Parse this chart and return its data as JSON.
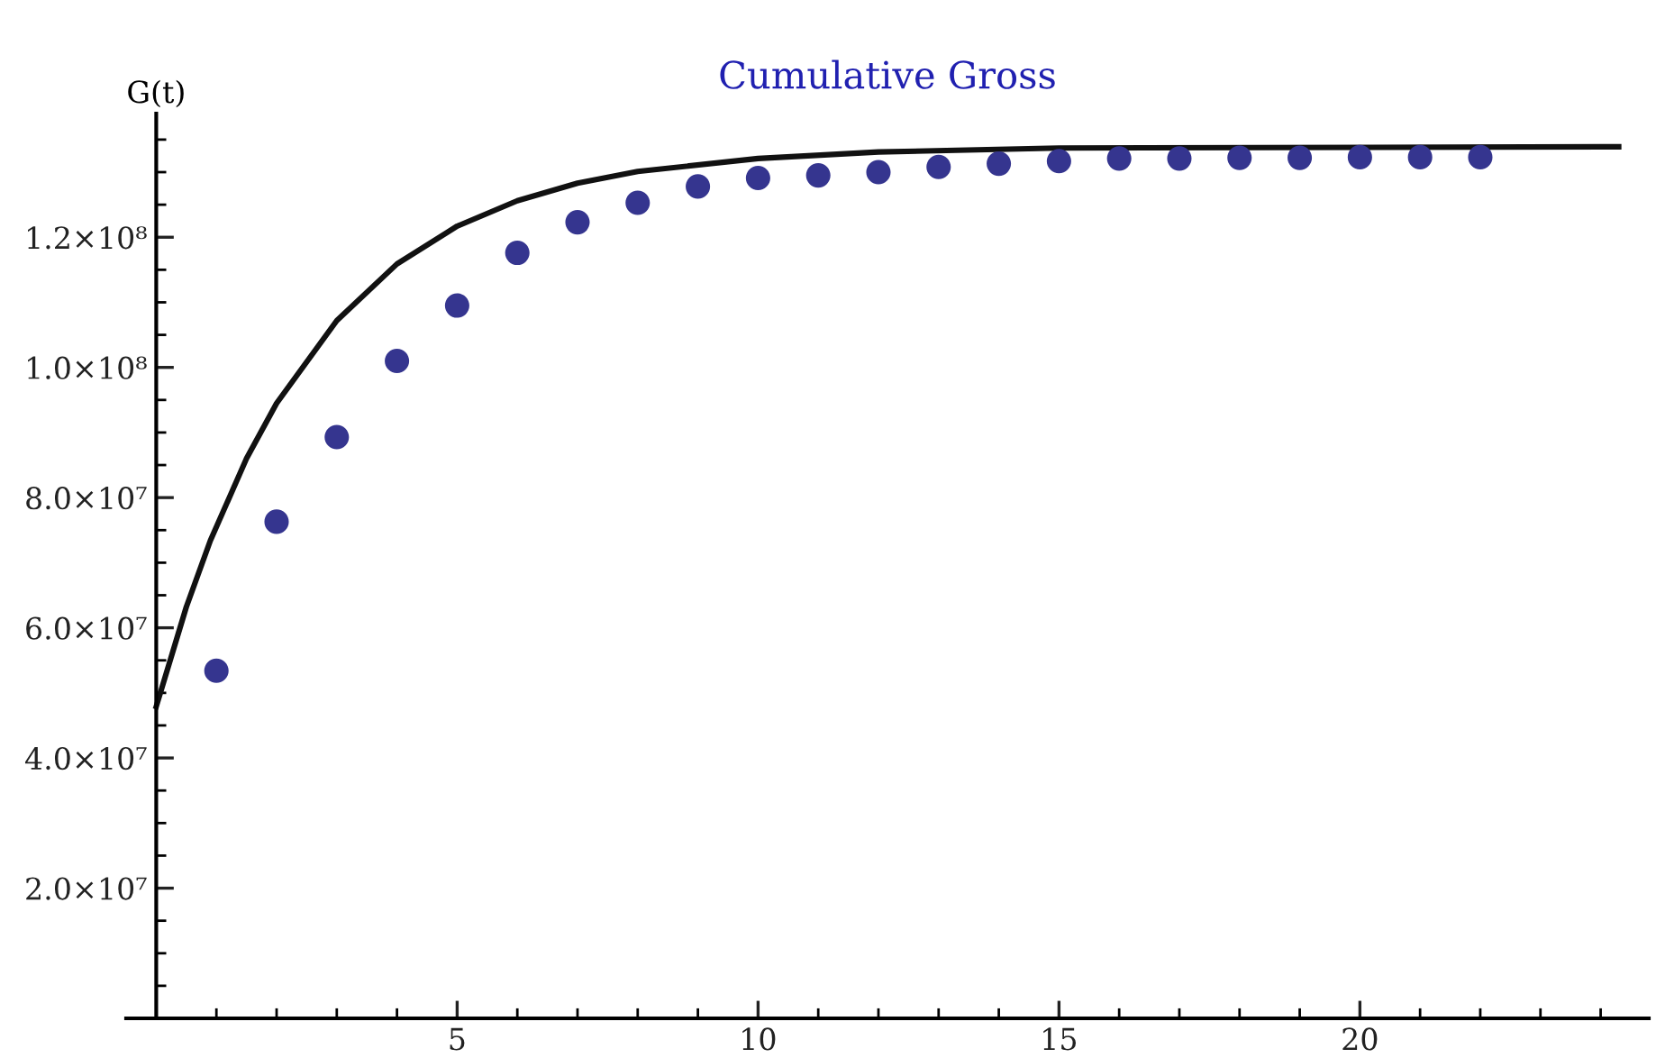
{
  "chart_data": {
    "type": "scatter",
    "title": "Cumulative Gross",
    "ylabel": "G(t)",
    "series": [
      {
        "color": "#35358f",
        "marker": "circle",
        "x": [
          1,
          2,
          3,
          4,
          5,
          6,
          7,
          8,
          9,
          10,
          11,
          12,
          13,
          14,
          15,
          16,
          17,
          18,
          19,
          20,
          21,
          22
        ],
        "values": [
          53400000.0,
          76300000.0,
          89300000.0,
          101000000.0,
          109500000.0,
          117600000.0,
          122300000.0,
          125300000.0,
          127800000.0,
          129100000.0,
          129500000.0,
          130000000.0,
          130800000.0,
          131300000.0,
          131700000.0,
          132100000.0,
          132100000.0,
          132200000.0,
          132200000.0,
          132300000.0,
          132300000.0,
          132300000.0
        ]
      },
      {
        "type": "line",
        "color": "#111111",
        "marker": "none",
        "line_style": "solid",
        "x": [
          0,
          0.5,
          0.9,
          1.5,
          2,
          3,
          4,
          5,
          6,
          7,
          8,
          10,
          12,
          15,
          24.3
        ],
        "values": [
          47900000.0,
          63200000.0,
          73400000.0,
          86000000.0,
          94500000.0,
          107200000.0,
          115900000.0,
          121700000.0,
          125600000.0,
          128300000.0,
          130100000.0,
          132100000.0,
          133100000.0,
          133700000.0,
          133900000.0
        ]
      }
    ],
    "xlim": [
      -0.5,
      24.8
    ],
    "xticks": [
      {
        "value": 1,
        "label": null
      },
      {
        "value": 2,
        "label": null
      },
      {
        "value": 3,
        "label": null
      },
      {
        "value": 4,
        "label": null
      },
      5,
      {
        "value": 6,
        "label": null
      },
      {
        "value": 7,
        "label": null
      },
      {
        "value": 8,
        "label": null
      },
      {
        "value": 9,
        "label": null
      },
      10,
      {
        "value": 11,
        "label": null
      },
      {
        "value": 12,
        "label": null
      },
      {
        "value": 13,
        "label": null
      },
      {
        "value": 14,
        "label": null
      },
      15,
      {
        "value": 16,
        "label": null
      },
      {
        "value": 17,
        "label": null
      },
      {
        "value": 18,
        "label": null
      },
      {
        "value": 19,
        "label": null
      },
      20,
      {
        "value": 21,
        "label": null
      },
      {
        "value": 22,
        "label": null
      },
      {
        "value": 23,
        "label": null
      },
      {
        "value": 24,
        "label": null
      }
    ],
    "ylim": [
      0,
      139000000.0
    ],
    "yticks": [
      {
        "value": 5000000.0,
        "label": null
      },
      {
        "value": 10000000.0,
        "label": null
      },
      {
        "value": 15000000.0,
        "label": null
      },
      {
        "value": 20000000.0,
        "label": "2.0×10⁷"
      },
      {
        "value": 25000000.0,
        "label": null
      },
      {
        "value": 30000000.0,
        "label": null
      },
      {
        "value": 35000000.0,
        "label": null
      },
      {
        "value": 40000000.0,
        "label": "4.0×10⁷"
      },
      {
        "value": 45000000.0,
        "label": null
      },
      {
        "value": 50000000.0,
        "label": null
      },
      {
        "value": 55000000.0,
        "label": null
      },
      {
        "value": 60000000.0,
        "label": "6.0×10⁷"
      },
      {
        "value": 65000000.0,
        "label": null
      },
      {
        "value": 70000000.0,
        "label": null
      },
      {
        "value": 75000000.0,
        "label": null
      },
      {
        "value": 80000000.0,
        "label": "8.0×10⁷"
      },
      {
        "value": 85000000.0,
        "label": null
      },
      {
        "value": 90000000.0,
        "label": null
      },
      {
        "value": 95000000.0,
        "label": null
      },
      {
        "value": 100000000.0,
        "label": "1.0×10⁸"
      },
      {
        "value": 105000000.0,
        "label": null
      },
      {
        "value": 110000000.0,
        "label": null
      },
      {
        "value": 115000000.0,
        "label": null
      },
      {
        "value": 120000000.0,
        "label": "1.2×10⁸"
      },
      {
        "value": 125000000.0,
        "label": null
      },
      {
        "value": 130000000.0,
        "label": null
      },
      {
        "value": 135000000.0,
        "label": null
      }
    ],
    "grid": false,
    "legend": false
  }
}
